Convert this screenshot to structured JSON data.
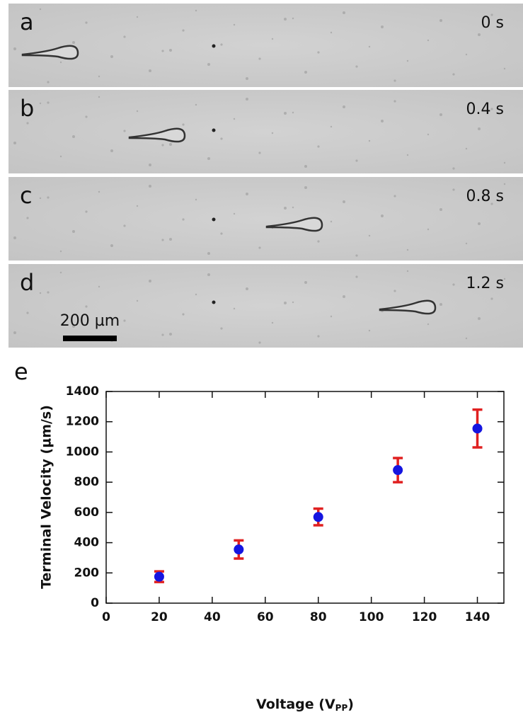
{
  "panels": [
    {
      "label": "a",
      "time": "0 s"
    },
    {
      "label": "b",
      "time": "0.4 s"
    },
    {
      "label": "c",
      "time": "0.8 s"
    },
    {
      "label": "d",
      "time": "1.2 s"
    }
  ],
  "scale_bar": "200 µm",
  "chart_panel_label": "e",
  "chart_data": {
    "type": "scatter",
    "x": [
      20,
      50,
      80,
      110,
      140
    ],
    "values": [
      175,
      355,
      570,
      880,
      1155
    ],
    "errors": [
      35,
      60,
      55,
      80,
      125
    ],
    "color": "#1515e0",
    "error_color": "#e02020",
    "xlabel": [
      "Voltage (V",
      "PP",
      ")"
    ],
    "ylabel": "Terminal Velocity (µm/s)",
    "xlim": [
      0,
      150
    ],
    "ylim": [
      0,
      1400
    ],
    "xticks": [
      0,
      20,
      40,
      60,
      80,
      100,
      120,
      140
    ],
    "yticks": [
      0,
      200,
      400,
      600,
      800,
      1000,
      1200,
      1400
    ]
  }
}
